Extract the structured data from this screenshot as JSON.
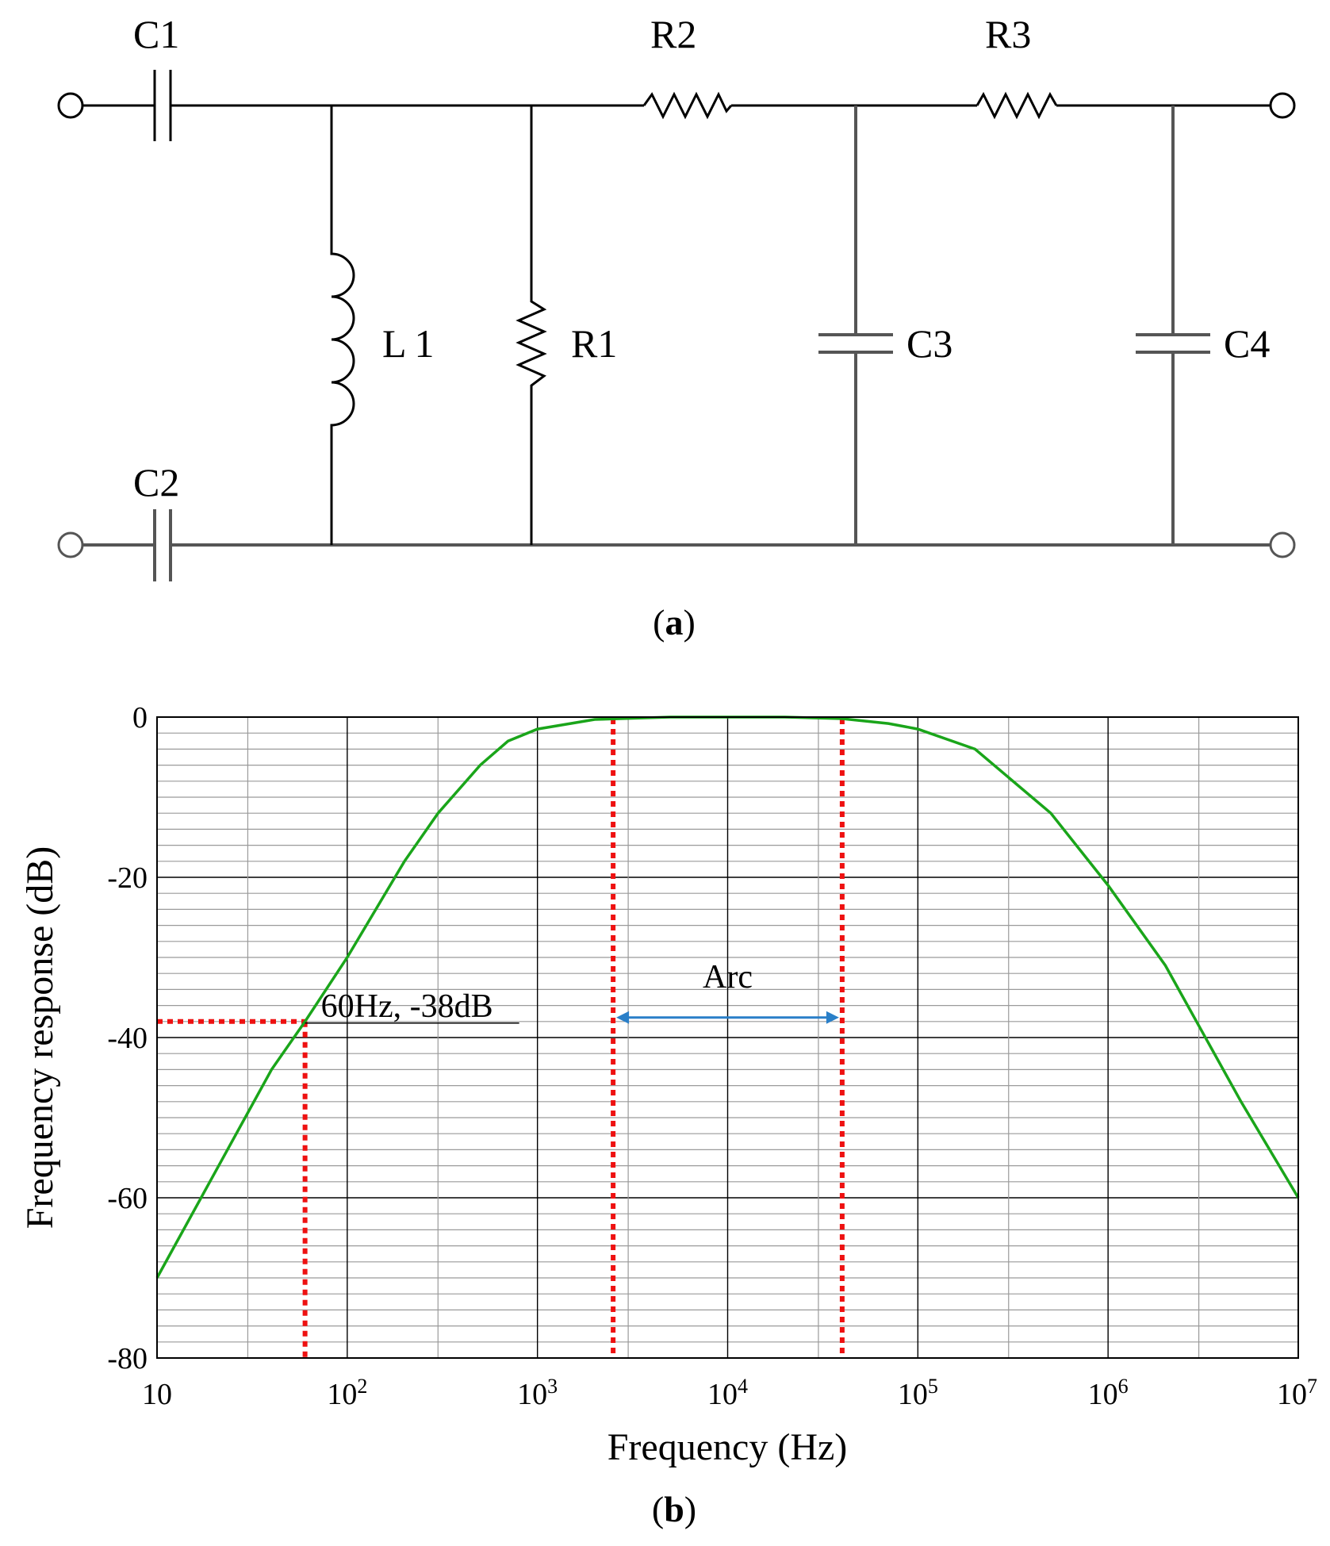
{
  "circuit": {
    "components": {
      "C1": "C1",
      "C2": "C2",
      "L1": "L1",
      "R1": "R1",
      "R2": "R2",
      "R3": "R3",
      "C3": "C3",
      "C4": "C4"
    },
    "panel_label": "a"
  },
  "chart_data": {
    "type": "line",
    "xlabel": "Frequency (Hz)",
    "ylabel": "Frequency response (dB)",
    "x_scale": "log",
    "xlim": [
      10,
      10000000
    ],
    "ylim": [
      -80,
      0
    ],
    "x_ticks": [
      10,
      100,
      1000,
      10000,
      100000,
      1000000,
      10000000
    ],
    "x_tick_labels": [
      {
        "base": "10",
        "exp": ""
      },
      {
        "base": "10",
        "exp": "2"
      },
      {
        "base": "10",
        "exp": "3"
      },
      {
        "base": "10",
        "exp": "4"
      },
      {
        "base": "10",
        "exp": "5"
      },
      {
        "base": "10",
        "exp": "6"
      },
      {
        "base": "10",
        "exp": "7"
      }
    ],
    "y_ticks": [
      0,
      -20,
      -40,
      -60,
      -80
    ],
    "y_tick_labels": [
      "0",
      "-20",
      "-40",
      "-60",
      "-80"
    ],
    "grid": true,
    "series": [
      {
        "color": "#1aa51a",
        "x": [
          10,
          20,
          40,
          60,
          100,
          200,
          300,
          500,
          700,
          1000,
          2000,
          5000,
          10000,
          20000,
          40000,
          70000,
          100000,
          200000,
          500000,
          1000000,
          2000000,
          5000000,
          10000000
        ],
        "y": [
          -70,
          -57,
          -44,
          -38,
          -30,
          -18,
          -12,
          -6,
          -3,
          -1.5,
          -0.3,
          0,
          0,
          0,
          -0.2,
          -0.8,
          -1.5,
          -4,
          -12,
          -21,
          -31,
          -48,
          -60
        ]
      }
    ],
    "annotations": {
      "point_label": "60Hz, -38dB",
      "point": {
        "x": 60,
        "y": -38
      },
      "range_label": "Arc",
      "range": {
        "x_start": 2500,
        "x_end": 40000
      }
    },
    "marker_color": "#ee1111",
    "arrow_color": "#2a7fc8",
    "panel_label": "b"
  }
}
